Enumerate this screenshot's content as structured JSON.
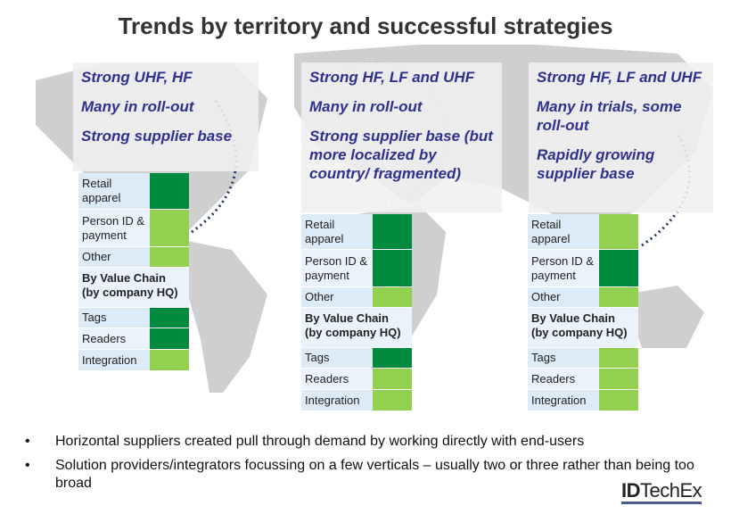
{
  "title": "Trends by territory and successful strategies",
  "colors": {
    "strong": "#008A3E",
    "moderate": "#92D050",
    "heading": "#2E3192"
  },
  "regions": [
    {
      "headings": [
        "Strong UHF, HF",
        "Many in roll-out",
        "Strong supplier base"
      ],
      "applications": [
        {
          "label": "Retail apparel",
          "level": "strong"
        },
        {
          "label": "Person ID & payment",
          "level": "moderate"
        },
        {
          "label": "Other",
          "level": "moderate"
        }
      ],
      "section_label": "By Value Chain (by company HQ)",
      "value_chain": [
        {
          "label": "Tags",
          "level": "strong"
        },
        {
          "label": "Readers",
          "level": "strong"
        },
        {
          "label": "Integration",
          "level": "moderate"
        }
      ]
    },
    {
      "headings": [
        "Strong HF, LF and UHF",
        "Many in roll-out",
        "Strong supplier base (but more localized by country/ fragmented)"
      ],
      "applications": [
        {
          "label": "Retail apparel",
          "level": "strong"
        },
        {
          "label": "Person ID & payment",
          "level": "strong"
        },
        {
          "label": "Other",
          "level": "moderate"
        }
      ],
      "section_label": "By Value Chain (by company HQ)",
      "value_chain": [
        {
          "label": "Tags",
          "level": "strong"
        },
        {
          "label": "Readers",
          "level": "moderate"
        },
        {
          "label": "Integration",
          "level": "moderate"
        }
      ]
    },
    {
      "headings": [
        "Strong HF, LF and UHF",
        "Many in trials, some roll-out",
        "Rapidly growing supplier base"
      ],
      "applications": [
        {
          "label": "Retail apparel",
          "level": "moderate"
        },
        {
          "label": "Person ID & payment",
          "level": "strong"
        },
        {
          "label": "Other",
          "level": "moderate"
        }
      ],
      "section_label": "By Value Chain (by company HQ)",
      "value_chain": [
        {
          "label": "Tags",
          "level": "moderate"
        },
        {
          "label": "Readers",
          "level": "moderate"
        },
        {
          "label": "Integration",
          "level": "moderate"
        }
      ]
    }
  ],
  "bullets": [
    "Horizontal suppliers created pull through demand by working directly with end-users",
    "Solution providers/integrators focussing on a few verticals – usually two or three rather than being too broad"
  ],
  "logo": {
    "bold": "ID",
    "rest": "TechEx"
  }
}
